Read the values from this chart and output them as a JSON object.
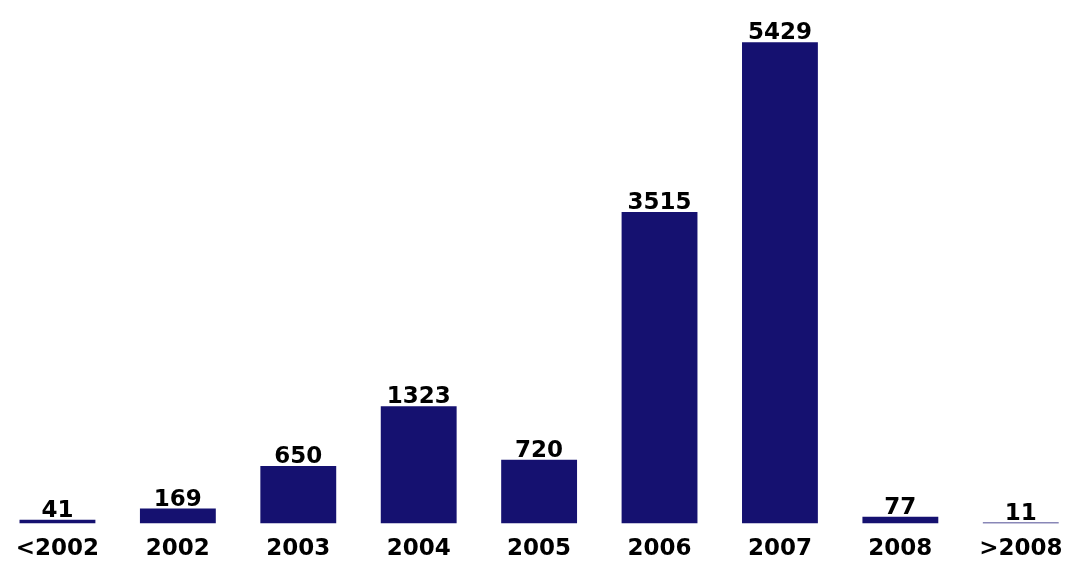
{
  "chart_data": {
    "type": "bar",
    "categories": [
      "<2002",
      "2002",
      "2003",
      "2004",
      "2005",
      "2006",
      "2007",
      "2008",
      ">2008"
    ],
    "values": [
      41,
      169,
      650,
      1323,
      720,
      3515,
      5429,
      77,
      11
    ],
    "color": "#151170",
    "data_labels": true
  }
}
